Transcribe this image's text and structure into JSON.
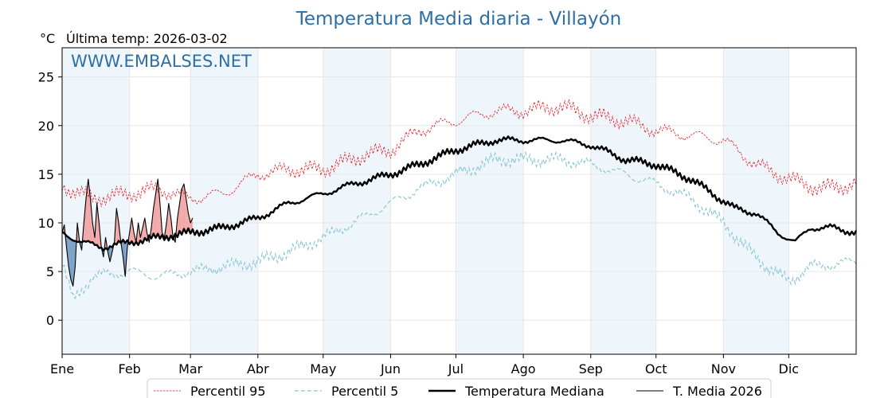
{
  "header": {
    "title": "Temperatura Media diaria - Villayón",
    "unit": "°C",
    "last_temp": "Última temp: 2026-03-02",
    "watermark": "WWW.EMBALSES.NET"
  },
  "colors": {
    "p95": "#e8141c",
    "p5": "#8cc8d8",
    "median": "#000000",
    "current": "#000000",
    "above_fill": "#f0a0a0",
    "below_fill": "#6e98c0",
    "band": "#eef5fb",
    "title": "#2e6fa3"
  },
  "chart_data": {
    "type": "line",
    "title": "Temperatura Media diaria - Villayón",
    "ylabel": "°C",
    "xlim": [
      1,
      366
    ],
    "ylim": [
      -3.5,
      28
    ],
    "yticks": [
      0,
      5,
      10,
      15,
      20,
      25
    ],
    "months": [
      {
        "label": "Ene",
        "day": 1
      },
      {
        "label": "Feb",
        "day": 32
      },
      {
        "label": "Mar",
        "day": 60
      },
      {
        "label": "Abr",
        "day": 91
      },
      {
        "label": "May",
        "day": 121
      },
      {
        "label": "Jun",
        "day": 152
      },
      {
        "label": "Jul",
        "day": 182
      },
      {
        "label": "Ago",
        "day": 213
      },
      {
        "label": "Sep",
        "day": 244
      },
      {
        "label": "Oct",
        "day": 274
      },
      {
        "label": "Nov",
        "day": 305
      },
      {
        "label": "Dic",
        "day": 335
      }
    ],
    "shaded_months": [
      "Ene",
      "Mar",
      "May",
      "Jul",
      "Sep",
      "Nov"
    ],
    "grid": true,
    "legend_position": "bottom-center",
    "series_keypoints": {
      "p95": [
        [
          1,
          13.8
        ],
        [
          15,
          12.5
        ],
        [
          32,
          13.0
        ],
        [
          45,
          13.5
        ],
        [
          60,
          12.5
        ],
        [
          75,
          13.0
        ],
        [
          91,
          15.0
        ],
        [
          105,
          15.5
        ],
        [
          121,
          15.5
        ],
        [
          140,
          17.0
        ],
        [
          152,
          17.5
        ],
        [
          165,
          19.5
        ],
        [
          182,
          20.5
        ],
        [
          200,
          21.5
        ],
        [
          213,
          21.5
        ],
        [
          230,
          22.0
        ],
        [
          244,
          21.0
        ],
        [
          260,
          20.5
        ],
        [
          274,
          19.5
        ],
        [
          290,
          19.0
        ],
        [
          305,
          18.5
        ],
        [
          320,
          16.0
        ],
        [
          335,
          14.5
        ],
        [
          350,
          13.5
        ],
        [
          366,
          14.0
        ]
      ],
      "p5": [
        [
          1,
          6.0
        ],
        [
          6,
          2.0
        ],
        [
          15,
          4.5
        ],
        [
          32,
          5.0
        ],
        [
          45,
          4.5
        ],
        [
          60,
          5.0
        ],
        [
          75,
          5.5
        ],
        [
          91,
          6.0
        ],
        [
          105,
          7.0
        ],
        [
          121,
          8.5
        ],
        [
          135,
          10.0
        ],
        [
          152,
          12.0
        ],
        [
          165,
          13.5
        ],
        [
          182,
          15.0
        ],
        [
          200,
          16.5
        ],
        [
          213,
          16.5
        ],
        [
          230,
          16.5
        ],
        [
          244,
          16.0
        ],
        [
          260,
          15.0
        ],
        [
          274,
          14.0
        ],
        [
          290,
          12.5
        ],
        [
          305,
          10.0
        ],
        [
          315,
          7.5
        ],
        [
          325,
          5.5
        ],
        [
          335,
          4.0
        ],
        [
          345,
          5.5
        ],
        [
          366,
          6.0
        ]
      ],
      "median": [
        [
          1,
          9.0
        ],
        [
          10,
          8.0
        ],
        [
          20,
          7.5
        ],
        [
          32,
          8.0
        ],
        [
          45,
          8.5
        ],
        [
          60,
          9.0
        ],
        [
          75,
          9.5
        ],
        [
          91,
          10.5
        ],
        [
          105,
          12.0
        ],
        [
          121,
          13.0
        ],
        [
          135,
          14.0
        ],
        [
          152,
          15.0
        ],
        [
          165,
          16.0
        ],
        [
          182,
          17.5
        ],
        [
          200,
          18.5
        ],
        [
          213,
          18.5
        ],
        [
          230,
          18.5
        ],
        [
          244,
          18.0
        ],
        [
          260,
          16.5
        ],
        [
          274,
          16.0
        ],
        [
          290,
          14.5
        ],
        [
          300,
          13.0
        ],
        [
          310,
          11.5
        ],
        [
          320,
          11.0
        ],
        [
          330,
          9.0
        ],
        [
          338,
          8.0
        ],
        [
          345,
          9.5
        ],
        [
          355,
          9.5
        ],
        [
          366,
          9.0
        ]
      ]
    },
    "current_2026": [
      [
        1,
        9.0
      ],
      [
        2,
        9.8
      ],
      [
        3,
        7.5
      ],
      [
        4,
        5.5
      ],
      [
        5,
        4.2
      ],
      [
        6,
        3.5
      ],
      [
        7,
        5.5
      ],
      [
        8,
        10.0
      ],
      [
        9,
        8.0
      ],
      [
        10,
        7.2
      ],
      [
        11,
        10.0
      ],
      [
        12,
        12.5
      ],
      [
        13,
        14.5
      ],
      [
        14,
        12.5
      ],
      [
        15,
        10.0
      ],
      [
        16,
        8.5
      ],
      [
        17,
        12.0
      ],
      [
        18,
        10.0
      ],
      [
        19,
        7.5
      ],
      [
        20,
        6.5
      ],
      [
        21,
        8.5
      ],
      [
        22,
        7.0
      ],
      [
        23,
        6.0
      ],
      [
        24,
        7.0
      ],
      [
        25,
        8.0
      ],
      [
        26,
        11.5
      ],
      [
        27,
        10.0
      ],
      [
        28,
        8.0
      ],
      [
        29,
        6.5
      ],
      [
        30,
        4.5
      ],
      [
        31,
        7.5
      ],
      [
        32,
        9.0
      ],
      [
        33,
        10.5
      ],
      [
        34,
        9.0
      ],
      [
        35,
        8.0
      ],
      [
        36,
        10.0
      ],
      [
        37,
        8.5
      ],
      [
        38,
        9.5
      ],
      [
        39,
        10.5
      ],
      [
        40,
        9.0
      ],
      [
        41,
        8.0
      ],
      [
        42,
        9.5
      ],
      [
        43,
        11.5
      ],
      [
        44,
        13.0
      ],
      [
        45,
        14.5
      ],
      [
        46,
        12.0
      ],
      [
        47,
        9.0
      ],
      [
        48,
        8.5
      ],
      [
        49,
        10.0
      ],
      [
        50,
        12.0
      ],
      [
        51,
        10.5
      ],
      [
        52,
        8.5
      ],
      [
        53,
        8.0
      ],
      [
        54,
        10.5
      ],
      [
        55,
        12.0
      ],
      [
        56,
        13.5
      ],
      [
        57,
        14.0
      ],
      [
        58,
        12.5
      ],
      [
        59,
        11.0
      ],
      [
        60,
        10.0
      ],
      [
        61,
        10.5
      ]
    ]
  },
  "legend": {
    "p95": "Percentil 95",
    "p5": "Percentil 5",
    "median": "Temperatura Mediana",
    "current": "T. Media 2026"
  }
}
